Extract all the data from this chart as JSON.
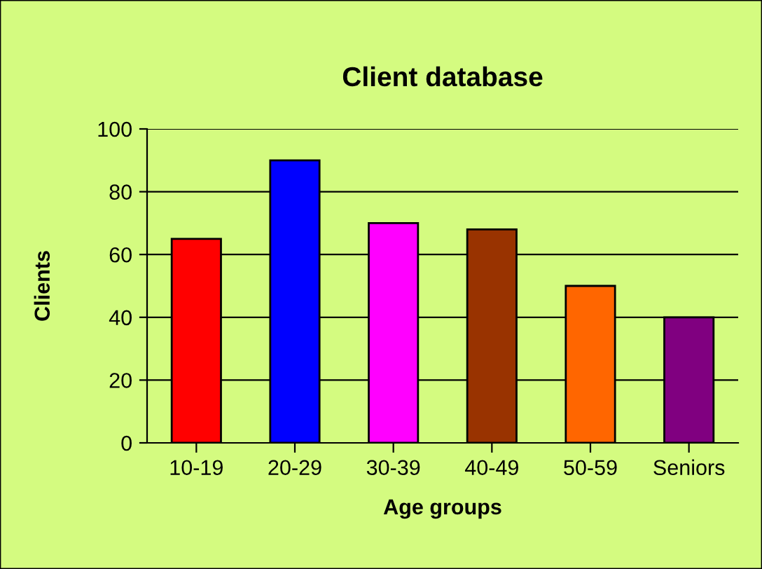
{
  "chart_data": {
    "type": "bar",
    "title": "Client database",
    "xlabel": "Age groups",
    "ylabel": "Clients",
    "categories": [
      "10-19",
      "20-29",
      "30-39",
      "40-49",
      "50-59",
      "Seniors"
    ],
    "values": [
      65,
      90,
      70,
      68,
      50,
      40
    ],
    "colors": [
      "#ff0000",
      "#0000ff",
      "#ff00ff",
      "#993300",
      "#ff6600",
      "#800080"
    ],
    "ylim": [
      0,
      100
    ],
    "yticks": [
      0,
      20,
      40,
      60,
      80,
      100
    ],
    "grid": "y",
    "legend": false
  }
}
